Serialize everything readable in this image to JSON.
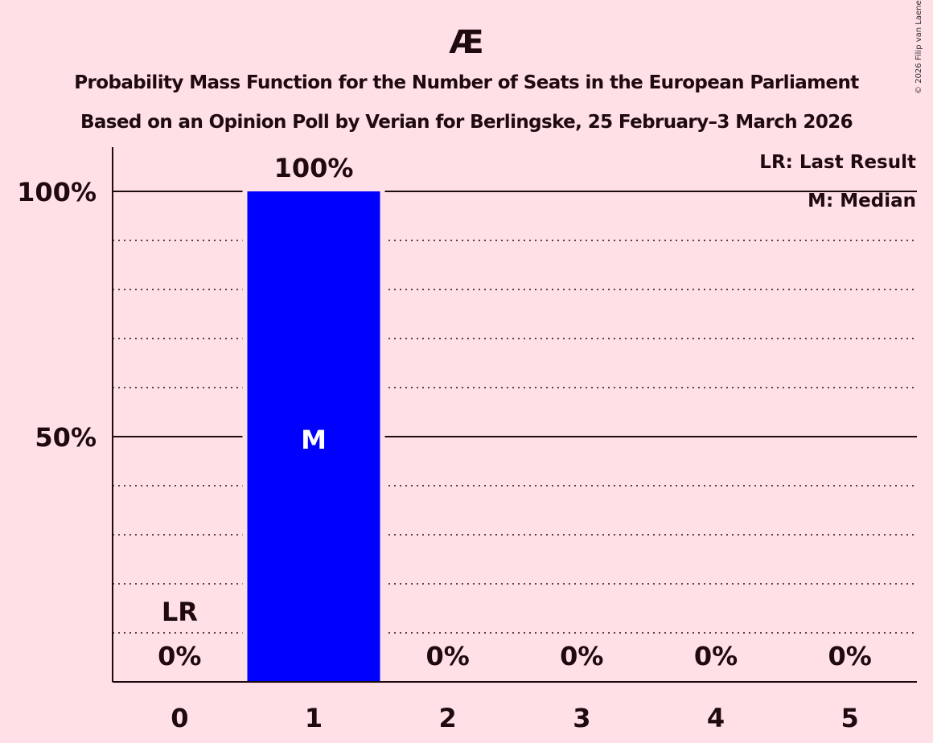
{
  "title": "Æ",
  "subtitle_line1": "Probability Mass Function for the Number of Seats in the European Parliament",
  "subtitle_line2": "Based on an Opinion Poll by Verian for Berlingske, 25 February–3 March 2026",
  "copyright": "© 2026 Filip van Laenen",
  "legend": {
    "lr": "LR: Last Result",
    "m": "M: Median"
  },
  "colors": {
    "background": "#ffe0e6",
    "bar": "#0000ff",
    "text": "#1e0a0f"
  },
  "chart_data": {
    "type": "bar",
    "title": "Æ",
    "subtitle": "Probability Mass Function for the Number of Seats in the European Parliament — Based on an Opinion Poll by Verian for Berlingske, 25 February–3 March 2026",
    "categories": [
      "0",
      "1",
      "2",
      "3",
      "4",
      "5"
    ],
    "values": [
      0,
      100,
      0,
      0,
      0,
      0
    ],
    "value_labels": [
      "0%",
      "100%",
      "0%",
      "0%",
      "0%",
      "0%"
    ],
    "ytick_labels": [
      "50%",
      "100%"
    ],
    "yticks": [
      50,
      100
    ],
    "ylim": [
      0,
      100
    ],
    "grid": "dotted every 10%, solid at 50% and 100%",
    "last_result_seat": 0,
    "median_seat": 1,
    "annotations": {
      "LR": "0",
      "M": "1"
    },
    "xlabel": "",
    "ylabel": "",
    "legend_position": "top-right"
  }
}
